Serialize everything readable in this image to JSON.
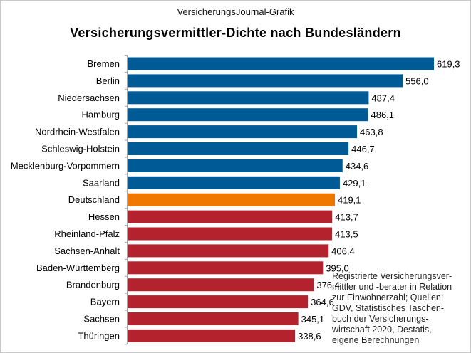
{
  "header": {
    "source_line": "VersicherungsJournal-Grafik"
  },
  "note": "Registrierte Versicherungsver-\nmittler und -berater in Relation\nzur Einwohnerzahl; Quellen:\nGDV, Statistisches Taschen-\nbuch der Versicherungs-\nwirtschaft 2020, Destatis,\neigene Berechnungen",
  "colors": {
    "high": "#005a96",
    "national": "#f07800",
    "low": "#b4232d",
    "axis": "#a6a6a6"
  },
  "chart_data": {
    "type": "bar",
    "orientation": "horizontal",
    "title": "Versicherungsvermittler-Dichte  nach Bundesländern",
    "xlabel": "",
    "ylabel": "",
    "xlim": [
      0,
      619.3
    ],
    "categories": [
      "Bremen",
      "Berlin",
      "Niedersachsen",
      "Hamburg",
      "Nordrhein-Westfalen",
      "Schleswig-Holstein",
      "Mecklenburg-Vorpommern",
      "Saarland",
      "Deutschland",
      "Hessen",
      "Rheinland-Pfalz",
      "Sachsen-Anhalt",
      "Baden-Württemberg",
      "Brandenburg",
      "Bayern",
      "Sachsen",
      "Thüringen"
    ],
    "values": [
      619.3,
      556.0,
      487.4,
      486.1,
      463.8,
      446.7,
      434.6,
      429.1,
      419.1,
      413.7,
      413.5,
      406.4,
      395.0,
      376.4,
      364.6,
      345.1,
      338.6
    ],
    "value_labels": [
      "619,3",
      "556,0",
      "487,4",
      "486,1",
      "463,8",
      "446,7",
      "434,6",
      "429,1",
      "419,1",
      "413,7",
      "413,5",
      "406,4",
      "395,0",
      "376,4",
      "364,6",
      "345,1",
      "338,6"
    ],
    "color_groups": [
      "high",
      "high",
      "high",
      "high",
      "high",
      "high",
      "high",
      "high",
      "national",
      "low",
      "low",
      "low",
      "low",
      "low",
      "low",
      "low",
      "low"
    ],
    "grid": false,
    "legend": "none"
  }
}
